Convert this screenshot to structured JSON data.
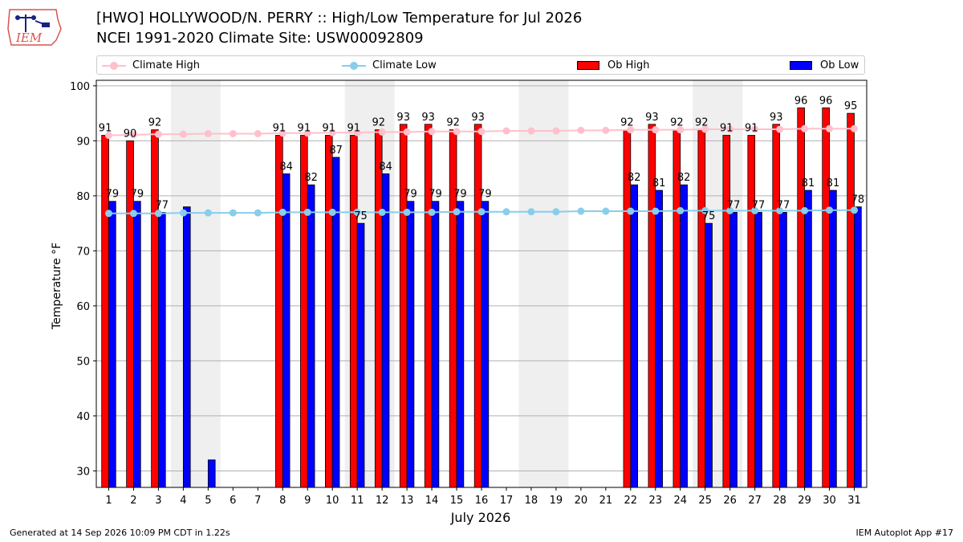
{
  "header": {
    "logo_text": "IEM",
    "title_line1": "[HWO] HOLLYWOOD/N. PERRY :: High/Low Temperature for Jul 2026",
    "title_line2": "NCEI 1991-2020 Climate Site: USW00092809"
  },
  "footer": {
    "generated": "Generated at 14 Sep 2026 10:09 PM CDT in 1.22s",
    "app": "IEM Autoplot App #17"
  },
  "colors": {
    "ob_high": "#ff0000",
    "ob_low": "#0000ff",
    "climate_high": "#ffc0cb",
    "climate_low": "#87ceeb",
    "weekend_shade": "#efefef",
    "grid": "#b0b0b0"
  },
  "chart_data": {
    "type": "bar",
    "xlabel": "July 2026",
    "ylabel": "Temperature °F",
    "ylim": [
      27,
      101
    ],
    "yticks": [
      30,
      40,
      50,
      60,
      70,
      80,
      90,
      100
    ],
    "days": [
      1,
      2,
      3,
      4,
      5,
      6,
      7,
      8,
      9,
      10,
      11,
      12,
      13,
      14,
      15,
      16,
      17,
      18,
      19,
      20,
      21,
      22,
      23,
      24,
      25,
      26,
      27,
      28,
      29,
      30,
      31
    ],
    "shaded_weekends": [
      [
        4,
        5
      ],
      [
        11,
        12
      ],
      [
        18,
        19
      ],
      [
        25,
        26
      ]
    ],
    "legend": [
      "Climate High",
      "Climate Low",
      "Ob High",
      "Ob Low"
    ],
    "legend_position": "top",
    "grid": "horizontal",
    "series": [
      {
        "name": "Ob High",
        "type": "bar",
        "values": [
          91,
          90,
          92,
          null,
          null,
          null,
          null,
          91,
          91,
          91,
          91,
          92,
          93,
          93,
          92,
          93,
          null,
          null,
          null,
          null,
          null,
          92,
          93,
          92,
          92,
          91,
          91,
          93,
          96,
          96,
          95
        ],
        "labels": [
          "91",
          "90",
          "92",
          "",
          "",
          "",
          "",
          "91",
          "91",
          "91",
          "91",
          "92",
          "93",
          "93",
          "92",
          "93",
          "",
          "",
          "",
          "",
          "",
          "92",
          "93",
          "92",
          "92",
          "91",
          "91",
          "93",
          "96",
          "96",
          "95"
        ]
      },
      {
        "name": "Ob Low",
        "type": "bar",
        "values": [
          79,
          79,
          77,
          78,
          32,
          null,
          null,
          84,
          82,
          87,
          75,
          84,
          79,
          79,
          79,
          79,
          null,
          null,
          null,
          null,
          null,
          82,
          81,
          82,
          75,
          77,
          77,
          77,
          81,
          81,
          78
        ],
        "labels": [
          "79",
          "79",
          "77",
          "",
          "",
          "",
          "",
          "84",
          "82",
          "87",
          "75",
          "84",
          "79",
          "79",
          "79",
          "79",
          "",
          "",
          "",
          "",
          "",
          "82",
          "81",
          "82",
          "75",
          "77",
          "77",
          "77",
          "81",
          "81",
          "78"
        ]
      },
      {
        "name": "Climate High",
        "type": "line",
        "values": [
          91.0,
          91.1,
          91.2,
          91.2,
          91.3,
          91.3,
          91.3,
          91.4,
          91.4,
          91.5,
          91.5,
          91.6,
          91.6,
          91.7,
          91.7,
          91.7,
          91.8,
          91.8,
          91.8,
          91.9,
          91.9,
          92.0,
          92.0,
          92.0,
          92.1,
          92.1,
          92.1,
          92.1,
          92.2,
          92.2,
          92.2
        ]
      },
      {
        "name": "Climate Low",
        "type": "line",
        "values": [
          76.8,
          76.8,
          76.8,
          76.9,
          76.9,
          76.9,
          76.9,
          77.0,
          77.0,
          77.0,
          77.0,
          77.0,
          77.0,
          77.0,
          77.1,
          77.1,
          77.1,
          77.1,
          77.1,
          77.2,
          77.2,
          77.2,
          77.2,
          77.3,
          77.3,
          77.3,
          77.3,
          77.3,
          77.3,
          77.4,
          77.4
        ]
      }
    ]
  }
}
